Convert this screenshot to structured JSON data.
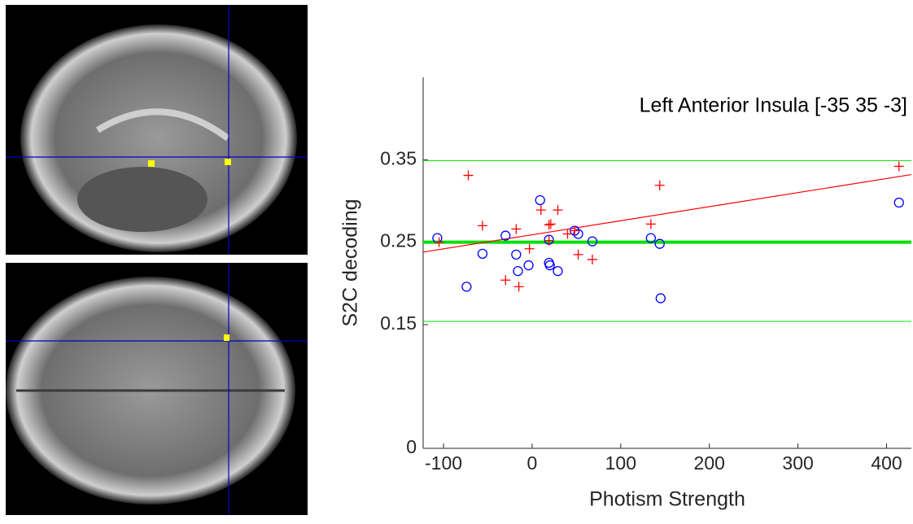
{
  "chart_data": {
    "type": "scatter",
    "annotation": "Left Anterior Insula [-35 35 -3]",
    "xlabel": "Photism Strength",
    "ylabel": "S2C decoding",
    "xlim": [
      -123,
      428
    ],
    "ylim": [
      0,
      0.45
    ],
    "xticks": [
      -100,
      0,
      100,
      200,
      300,
      400
    ],
    "yticks": [
      0,
      0.15,
      0.25,
      0.35
    ],
    "series": [
      {
        "color": "#0000ff",
        "marker": "circle",
        "x": [
          -107,
          -74,
          -56,
          -30,
          -18,
          -16,
          -4,
          9,
          19,
          19,
          20,
          29,
          48,
          52,
          68,
          134,
          144,
          145,
          414
        ],
        "values": [
          0.255,
          0.196,
          0.236,
          0.258,
          0.235,
          0.215,
          0.222,
          0.301,
          0.253,
          0.225,
          0.222,
          0.215,
          0.264,
          0.26,
          0.251,
          0.255,
          0.248,
          0.182,
          0.298
        ]
      },
      {
        "color": "#ff0000",
        "marker": "plus",
        "x": [
          -105,
          -72,
          -56,
          -30,
          -18,
          -15,
          -3,
          10,
          19,
          21,
          19,
          29,
          40,
          48,
          52,
          68,
          134,
          144,
          414
        ],
        "values": [
          0.25,
          0.331,
          0.27,
          0.204,
          0.266,
          0.196,
          0.242,
          0.289,
          0.271,
          0.272,
          0.252,
          0.289,
          0.26,
          0.264,
          0.235,
          0.229,
          0.272,
          0.319,
          0.342
        ]
      }
    ],
    "fit_line": {
      "color": "#ff0000",
      "x": [
        -123,
        428
      ],
      "y": [
        0.238,
        0.332
      ]
    },
    "reference_lines": [
      {
        "value": 0.349,
        "width": 1
      },
      {
        "value": 0.25,
        "width": 4
      },
      {
        "value": 0.154,
        "width": 1
      }
    ],
    "reference_color": "#00e000"
  }
}
